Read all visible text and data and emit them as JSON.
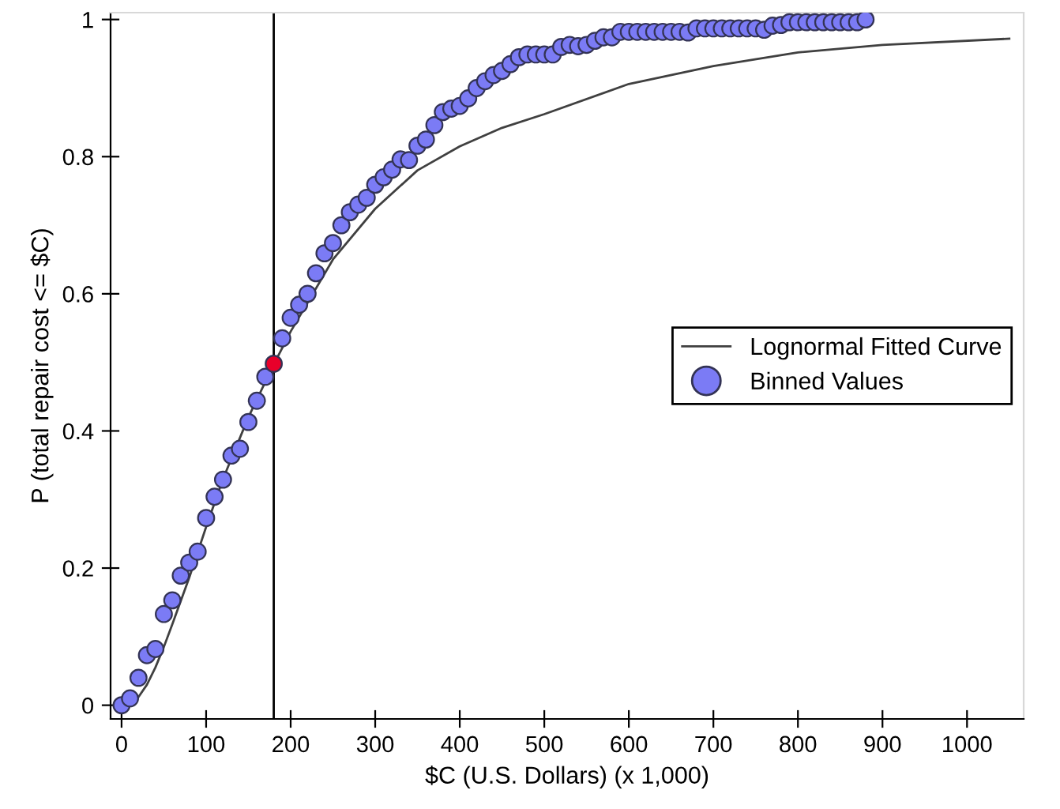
{
  "chart_data": {
    "type": "scatter",
    "xlabel": "$C (U.S. Dollars) (x 1,000)",
    "ylabel": "P (total repair cost <= $C)",
    "xlim": [
      -13,
      1067
    ],
    "ylim": [
      -0.02,
      1.01
    ],
    "xticks": [
      0,
      100,
      200,
      300,
      400,
      500,
      600,
      700,
      800,
      900,
      1000
    ],
    "yticks": [
      0,
      0.2,
      0.4,
      0.6,
      0.8,
      1
    ],
    "grid": false,
    "legend": "right",
    "ref_lines": [
      {
        "axis": "x",
        "value": 180,
        "color": "#000000",
        "line_style": "solid"
      }
    ],
    "series": [
      {
        "name": "Lognormal Fitted Curve",
        "type": "line",
        "color": "#404040",
        "marker": "none",
        "line_style": "solid",
        "x": [
          0,
          10,
          20,
          30,
          40,
          50,
          60,
          70,
          80,
          100,
          120,
          150,
          180,
          200,
          250,
          300,
          350,
          400,
          450,
          500,
          600,
          700,
          800,
          900,
          1050
        ],
        "values": [
          0,
          0.002,
          0.012,
          0.03,
          0.055,
          0.085,
          0.118,
          0.152,
          0.186,
          0.26,
          0.33,
          0.42,
          0.497,
          0.545,
          0.65,
          0.724,
          0.78,
          0.815,
          0.842,
          0.862,
          0.906,
          0.932,
          0.952,
          0.963,
          0.972
        ]
      },
      {
        "name": "Binned Values",
        "color": "#7b7bf5",
        "marker": "circle",
        "x": [
          0,
          10,
          20,
          30,
          40,
          50,
          60,
          70,
          80,
          90,
          100,
          110,
          120,
          130,
          140,
          150,
          160,
          170,
          190,
          200,
          210,
          220,
          230,
          240,
          250,
          260,
          270,
          280,
          290,
          300,
          310,
          320,
          330,
          340,
          350,
          360,
          370,
          380,
          390,
          400,
          410,
          420,
          430,
          440,
          450,
          460,
          470,
          480,
          490,
          500,
          510,
          520,
          530,
          540,
          550,
          560,
          570,
          580,
          590,
          600,
          610,
          620,
          630,
          640,
          650,
          660,
          670,
          680,
          690,
          700,
          710,
          720,
          730,
          740,
          750,
          760,
          770,
          780,
          790,
          800,
          810,
          820,
          830,
          840,
          850,
          860,
          870,
          880
        ],
        "values": [
          0,
          0.01,
          0.04,
          0.073,
          0.082,
          0.133,
          0.153,
          0.189,
          0.208,
          0.224,
          0.273,
          0.304,
          0.329,
          0.364,
          0.374,
          0.413,
          0.444,
          0.479,
          0.535,
          0.565,
          0.584,
          0.6,
          0.63,
          0.659,
          0.674,
          0.7,
          0.719,
          0.73,
          0.74,
          0.759,
          0.77,
          0.781,
          0.796,
          0.795,
          0.816,
          0.825,
          0.846,
          0.865,
          0.87,
          0.874,
          0.885,
          0.9,
          0.91,
          0.919,
          0.925,
          0.935,
          0.945,
          0.949,
          0.949,
          0.949,
          0.949,
          0.96,
          0.963,
          0.961,
          0.963,
          0.969,
          0.974,
          0.974,
          0.982,
          0.982,
          0.982,
          0.982,
          0.982,
          0.982,
          0.982,
          0.982,
          0.981,
          0.987,
          0.987,
          0.987,
          0.987,
          0.987,
          0.987,
          0.987,
          0.987,
          0.985,
          0.991,
          0.992,
          0.996,
          0.996,
          0.996,
          0.996,
          0.996,
          0.996,
          0.996,
          0.996,
          0.996,
          1.0
        ]
      },
      {
        "color": "#e8002a",
        "marker": "circle",
        "x": [
          180
        ],
        "values": [
          0.498
        ]
      }
    ]
  }
}
